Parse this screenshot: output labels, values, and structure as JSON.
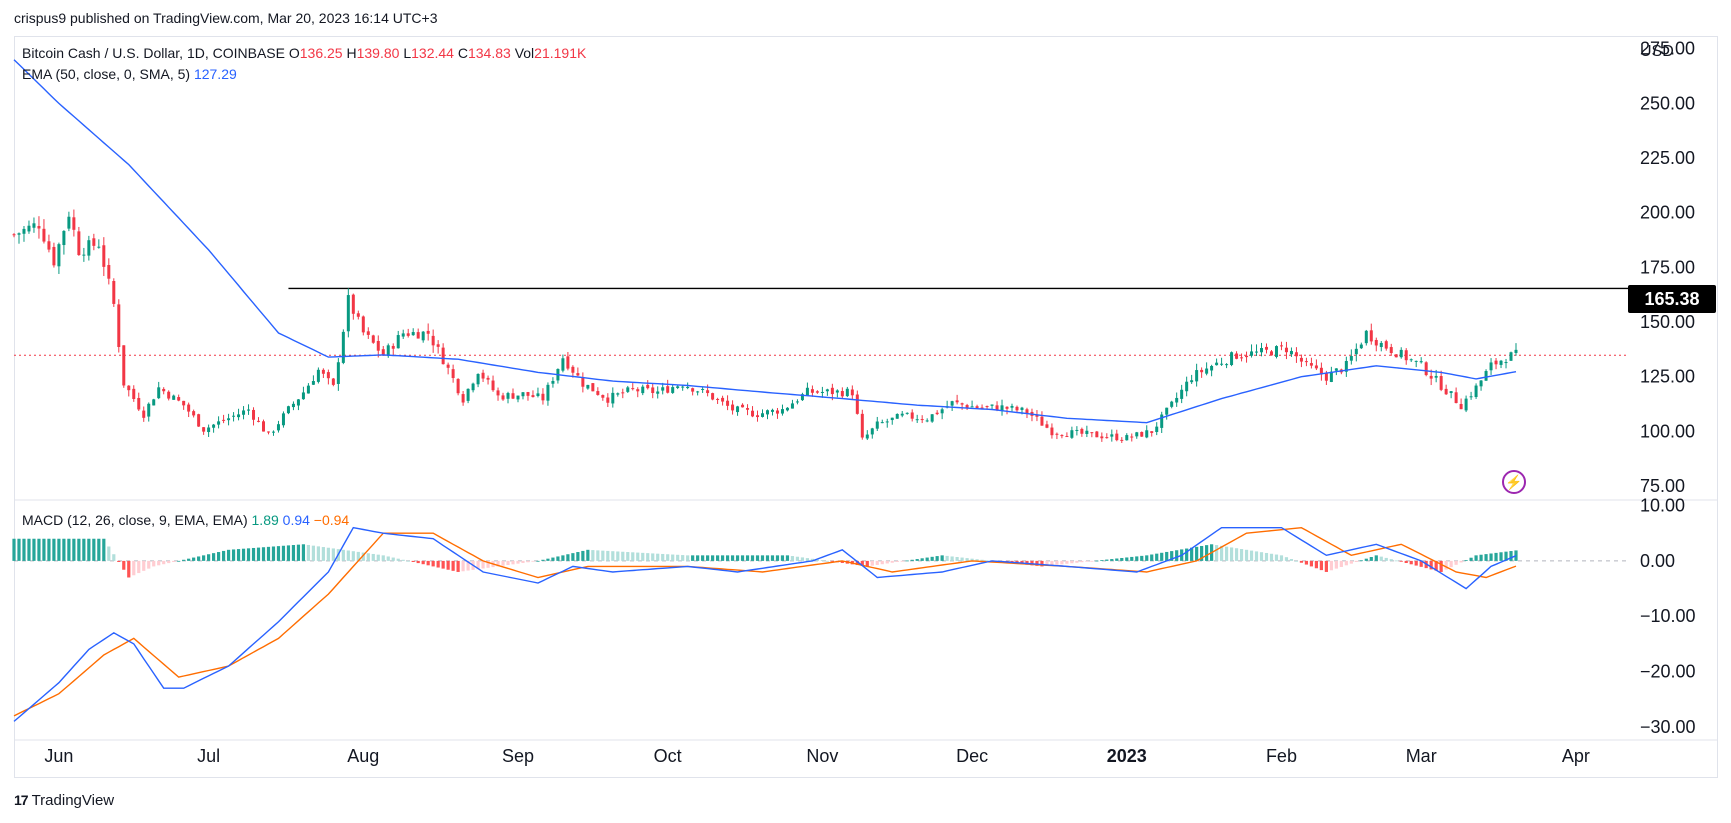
{
  "header": {
    "publisher_text": "crispus9 published on TradingView.com, Mar 20, 2023 16:14 UTC+3"
  },
  "legend": {
    "symbol": "Bitcoin Cash / U.S. Dollar, 1D, COINBASE",
    "o_label": "O",
    "o_value": "136.25",
    "h_label": "H",
    "h_value": "139.80",
    "l_label": "L",
    "l_value": "132.44",
    "c_label": "C",
    "c_value": "134.83",
    "vol_label": "Vol",
    "vol_value": "21.191K",
    "ema_label": "EMA (50, close, 0, SMA, 5)",
    "ema_value": "127.29",
    "macd_label": "MACD (12, 26, close, 9, EMA, EMA)",
    "macd_hist": "1.89",
    "macd_line": "0.94",
    "macd_signal": "−0.94"
  },
  "axis": {
    "currency": "USD",
    "highlighted_price": "165.38"
  },
  "brand": {
    "logo_text": "17",
    "name": "TradingView"
  },
  "colors": {
    "up": "#089981",
    "down": "#f23645",
    "ema": "#2962ff",
    "macd": "#2962ff",
    "signal": "#ff6d00",
    "hist_up_strong": "#26a69a",
    "hist_up_weak": "#b2dfdb",
    "hist_down_strong": "#ff5252",
    "hist_down_weak": "#ffcdd2",
    "current_price_line": "#f23645",
    "resistance_line": "#000000",
    "badge": "#9c27b0"
  },
  "chart_data": [
    {
      "type": "candlestick",
      "title": "Bitcoin Cash / U.S. Dollar, 1D, COINBASE",
      "x_ticks": [
        "Jun",
        "Jul",
        "Aug",
        "Sep",
        "Oct",
        "Nov",
        "Dec",
        "2023",
        "Feb",
        "Mar",
        "Apr"
      ],
      "y_ticks": [
        "275.00",
        "250.00",
        "225.00",
        "200.00",
        "175.00",
        "150.00",
        "125.00",
        "100.00",
        "75.00"
      ],
      "ylim": [
        70,
        279
      ],
      "date_range": [
        "2022-05-23",
        "2023-03-20"
      ],
      "horizontal_line": 165.38,
      "current_price": 134.83,
      "close_path": [
        [
          "2022-05-23",
          190
        ],
        [
          "2022-05-28",
          195
        ],
        [
          "2022-05-31",
          178
        ],
        [
          "2022-06-03",
          200
        ],
        [
          "2022-06-05",
          183
        ],
        [
          "2022-06-09",
          186
        ],
        [
          "2022-06-12",
          158
        ],
        [
          "2022-06-14",
          122
        ],
        [
          "2022-06-18",
          108
        ],
        [
          "2022-06-21",
          120
        ],
        [
          "2022-06-26",
          112
        ],
        [
          "2022-06-30",
          101
        ],
        [
          "2022-07-05",
          106
        ],
        [
          "2022-07-09",
          110
        ],
        [
          "2022-07-13",
          98
        ],
        [
          "2022-07-17",
          110
        ],
        [
          "2022-07-20",
          118
        ],
        [
          "2022-07-23",
          128
        ],
        [
          "2022-07-26",
          120
        ],
        [
          "2022-07-29",
          160
        ],
        [
          "2022-08-01",
          145
        ],
        [
          "2022-08-05",
          135
        ],
        [
          "2022-08-09",
          145
        ],
        [
          "2022-08-14",
          145
        ],
        [
          "2022-08-17",
          133
        ],
        [
          "2022-08-21",
          115
        ],
        [
          "2022-08-24",
          128
        ],
        [
          "2022-08-28",
          116
        ],
        [
          "2022-09-02",
          117
        ],
        [
          "2022-09-06",
          115
        ],
        [
          "2022-09-10",
          134
        ],
        [
          "2022-09-14",
          122
        ],
        [
          "2022-09-19",
          115
        ],
        [
          "2022-09-24",
          119
        ],
        [
          "2022-09-29",
          118
        ],
        [
          "2022-10-04",
          122
        ],
        [
          "2022-10-09",
          117
        ],
        [
          "2022-10-14",
          110
        ],
        [
          "2022-10-19",
          108
        ],
        [
          "2022-10-24",
          110
        ],
        [
          "2022-10-29",
          118
        ],
        [
          "2022-11-03",
          118
        ],
        [
          "2022-11-07",
          118
        ],
        [
          "2022-11-09",
          96
        ],
        [
          "2022-11-12",
          103
        ],
        [
          "2022-11-17",
          107
        ],
        [
          "2022-11-22",
          106
        ],
        [
          "2022-11-27",
          113
        ],
        [
          "2022-12-02",
          111
        ],
        [
          "2022-12-07",
          111
        ],
        [
          "2022-12-12",
          109
        ],
        [
          "2022-12-17",
          100
        ],
        [
          "2022-12-22",
          99
        ],
        [
          "2022-12-27",
          98
        ],
        [
          "2023-01-01",
          97
        ],
        [
          "2023-01-06",
          100
        ],
        [
          "2023-01-10",
          112
        ],
        [
          "2023-01-14",
          125
        ],
        [
          "2023-01-18",
          130
        ],
        [
          "2023-01-23",
          135
        ],
        [
          "2023-01-28",
          136
        ],
        [
          "2023-02-02",
          138
        ],
        [
          "2023-02-06",
          130
        ],
        [
          "2023-02-10",
          125
        ],
        [
          "2023-02-14",
          130
        ],
        [
          "2023-02-18",
          145
        ],
        [
          "2023-02-21",
          140
        ],
        [
          "2023-02-25",
          135
        ],
        [
          "2023-03-01",
          130
        ],
        [
          "2023-03-05",
          121
        ],
        [
          "2023-03-09",
          112
        ],
        [
          "2023-03-12",
          120
        ],
        [
          "2023-03-15",
          130
        ],
        [
          "2023-03-18",
          134
        ],
        [
          "2023-03-20",
          135
        ]
      ],
      "ema_path": [
        [
          "2022-05-23",
          270
        ],
        [
          "2022-06-01",
          250
        ],
        [
          "2022-06-15",
          222
        ],
        [
          "2022-07-01",
          183
        ],
        [
          "2022-07-15",
          145
        ],
        [
          "2022-07-25",
          134
        ],
        [
          "2022-08-05",
          135
        ],
        [
          "2022-08-20",
          133
        ],
        [
          "2022-09-05",
          127
        ],
        [
          "2022-09-20",
          123
        ],
        [
          "2022-10-05",
          121
        ],
        [
          "2022-10-20",
          118
        ],
        [
          "2022-11-05",
          115
        ],
        [
          "2022-11-20",
          112
        ],
        [
          "2022-12-05",
          110
        ],
        [
          "2022-12-20",
          106
        ],
        [
          "2023-01-05",
          104
        ],
        [
          "2023-01-20",
          115
        ],
        [
          "2023-02-05",
          125
        ],
        [
          "2023-02-20",
          130
        ],
        [
          "2023-03-05",
          127
        ],
        [
          "2023-03-12",
          124
        ],
        [
          "2023-03-20",
          127.29
        ]
      ]
    },
    {
      "type": "line",
      "title": "MACD (12, 26, close, 9, EMA, EMA)",
      "y_ticks": [
        "10.00",
        "0.00",
        "−10.00",
        "−20.00",
        "−30.00"
      ],
      "ylim": [
        -32,
        11
      ],
      "series": [
        {
          "name": "MACD",
          "points": [
            [
              "2022-05-23",
              -29
            ],
            [
              "2022-06-01",
              -22
            ],
            [
              "2022-06-07",
              -16
            ],
            [
              "2022-06-12",
              -13
            ],
            [
              "2022-06-16",
              -15
            ],
            [
              "2022-06-22",
              -23
            ],
            [
              "2022-06-26",
              -23
            ],
            [
              "2022-07-05",
              -19
            ],
            [
              "2022-07-15",
              -11
            ],
            [
              "2022-07-25",
              -2
            ],
            [
              "2022-07-30",
              6
            ],
            [
              "2022-08-05",
              5
            ],
            [
              "2022-08-15",
              4
            ],
            [
              "2022-08-25",
              -2
            ],
            [
              "2022-09-05",
              -4
            ],
            [
              "2022-09-12",
              -1
            ],
            [
              "2022-09-20",
              -2
            ],
            [
              "2022-10-05",
              -1
            ],
            [
              "2022-10-15",
              -2
            ],
            [
              "2022-10-30",
              0
            ],
            [
              "2022-11-05",
              2
            ],
            [
              "2022-11-12",
              -3
            ],
            [
              "2022-11-25",
              -2
            ],
            [
              "2022-12-05",
              0
            ],
            [
              "2022-12-20",
              -1
            ],
            [
              "2023-01-03",
              -2
            ],
            [
              "2023-01-12",
              1
            ],
            [
              "2023-01-20",
              6
            ],
            [
              "2023-02-01",
              6
            ],
            [
              "2023-02-10",
              1
            ],
            [
              "2023-02-20",
              3
            ],
            [
              "2023-03-01",
              0
            ],
            [
              "2023-03-10",
              -5
            ],
            [
              "2023-03-15",
              -1
            ],
            [
              "2023-03-20",
              0.94
            ]
          ]
        },
        {
          "name": "Signal",
          "points": [
            [
              "2022-05-23",
              -28
            ],
            [
              "2022-06-01",
              -24
            ],
            [
              "2022-06-10",
              -17
            ],
            [
              "2022-06-16",
              -14
            ],
            [
              "2022-06-25",
              -21
            ],
            [
              "2022-07-05",
              -19
            ],
            [
              "2022-07-15",
              -14
            ],
            [
              "2022-07-25",
              -6
            ],
            [
              "2022-08-05",
              5
            ],
            [
              "2022-08-15",
              5
            ],
            [
              "2022-08-25",
              0
            ],
            [
              "2022-09-05",
              -3
            ],
            [
              "2022-09-15",
              -1
            ],
            [
              "2022-10-05",
              -1
            ],
            [
              "2022-10-20",
              -2
            ],
            [
              "2022-11-05",
              0
            ],
            [
              "2022-11-15",
              -2
            ],
            [
              "2022-12-01",
              0
            ],
            [
              "2022-12-20",
              -1
            ],
            [
              "2023-01-05",
              -2
            ],
            [
              "2023-01-15",
              0
            ],
            [
              "2023-01-25",
              5
            ],
            [
              "2023-02-05",
              6
            ],
            [
              "2023-02-15",
              1
            ],
            [
              "2023-02-25",
              3
            ],
            [
              "2023-03-08",
              -2
            ],
            [
              "2023-03-14",
              -3
            ],
            [
              "2023-03-20",
              -0.94
            ]
          ]
        },
        {
          "name": "Histogram",
          "points": [
            [
              "2022-05-23",
              4
            ],
            [
              "2022-06-10",
              4
            ],
            [
              "2022-06-15",
              -3
            ],
            [
              "2022-06-20",
              -1
            ],
            [
              "2022-07-05",
              2
            ],
            [
              "2022-07-20",
              3
            ],
            [
              "2022-08-05",
              1
            ],
            [
              "2022-08-20",
              -2
            ],
            [
              "2022-09-05",
              0
            ],
            [
              "2022-09-15",
              2
            ],
            [
              "2022-10-05",
              1
            ],
            [
              "2022-10-25",
              1
            ],
            [
              "2022-11-10",
              -1
            ],
            [
              "2022-11-25",
              1
            ],
            [
              "2022-12-15",
              -1
            ],
            [
              "2023-01-05",
              1
            ],
            [
              "2023-01-18",
              3
            ],
            [
              "2023-02-01",
              1
            ],
            [
              "2023-02-10",
              -2
            ],
            [
              "2023-02-20",
              1
            ],
            [
              "2023-03-05",
              -2
            ],
            [
              "2023-03-12",
              1
            ],
            [
              "2023-03-20",
              1.89
            ]
          ]
        }
      ]
    }
  ]
}
